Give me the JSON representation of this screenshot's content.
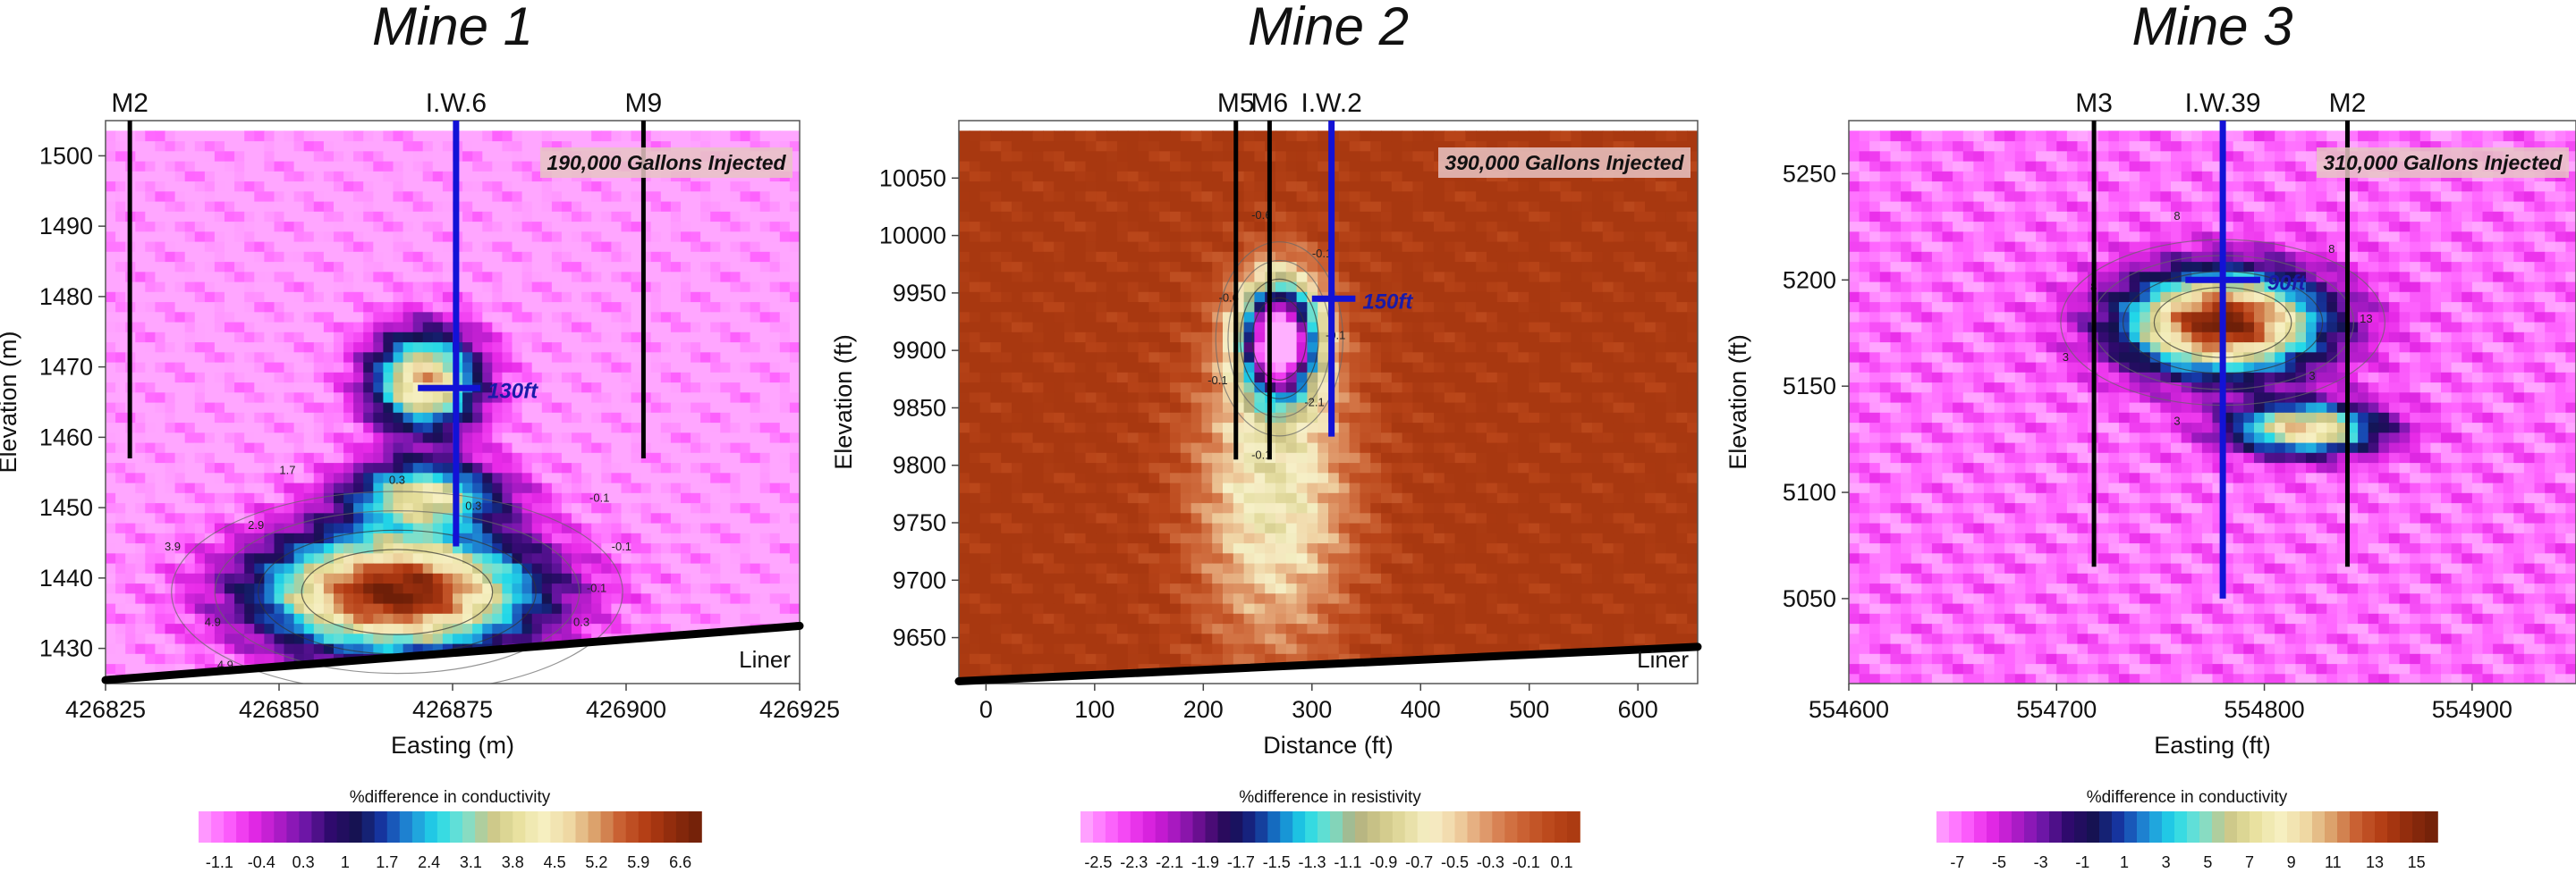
{
  "chart_data": [
    {
      "type": "heatmap",
      "title": "Mine 1",
      "xlabel": "Easting (m)",
      "ylabel": "Elevation (m)",
      "xlim": [
        426825,
        426925
      ],
      "ylim": [
        1425,
        1505
      ],
      "xticks": [
        426825,
        426850,
        426875,
        426900,
        426925
      ],
      "yticks": [
        1430,
        1440,
        1450,
        1460,
        1470,
        1480,
        1490,
        1500
      ],
      "annotation": "190,000 Gallons Injected",
      "liner_label": "Liner",
      "liner": [
        [
          426825,
          1425.5
        ],
        [
          426925,
          1433.2
        ]
      ],
      "surface_y": 1503,
      "wells": [
        {
          "name": "M2",
          "x": 426828.5,
          "y_top": 1505,
          "y_bottom": 1457,
          "color": "#000000"
        },
        {
          "name": "I.W.6",
          "x": 426875.5,
          "y_top": 1505,
          "y_bottom": 1444.5,
          "color": "#1212d6"
        },
        {
          "name": "M9",
          "x": 426902.5,
          "y_top": 1505,
          "y_bottom": 1457,
          "color": "#000000"
        }
      ],
      "radius_marker": {
        "label": "130ft",
        "x0": 426870,
        "x1": 426879,
        "y": 1467
      },
      "contour_labels": [
        "-0.1",
        "-0.1",
        "-0.1",
        "0.3",
        "0.3",
        "1.7",
        "2.9",
        "3.9",
        "3.9",
        "4.9",
        "4.9",
        "6.9",
        "1.9",
        "3.9",
        "2.9",
        "0.3"
      ],
      "anomalies": [
        {
          "x": 426867,
          "y": 1438,
          "rx": 25,
          "ry": 11,
          "amp": 7.2
        },
        {
          "x": 426871,
          "y": 1468,
          "rx": 10,
          "ry": 9,
          "amp": 5.3
        },
        {
          "x": 426871,
          "y": 1452,
          "rx": 14,
          "ry": 6,
          "amp": 3.8
        }
      ],
      "background": -1.1,
      "colorbar": {
        "label": "%difference in conductivity",
        "ticks": [
          "-1.1",
          "-0.4",
          "0.3",
          "1",
          "1.7",
          "2.4",
          "3.1",
          "3.8",
          "4.5",
          "5.2",
          "5.9",
          "6.6"
        ],
        "range": [
          -1.1,
          7.2
        ]
      }
    },
    {
      "type": "heatmap",
      "title": "Mine 2",
      "xlabel": "Distance (ft)",
      "ylabel": "Elevation (ft)",
      "xlim": [
        -25,
        655
      ],
      "ylim": [
        9610,
        10100
      ],
      "xticks": [
        0,
        100,
        200,
        300,
        400,
        500,
        600
      ],
      "yticks": [
        9650,
        9700,
        9750,
        9800,
        9850,
        9900,
        9950,
        10000,
        10050
      ],
      "annotation": "390,000 Gallons Injected",
      "liner_label": "Liner",
      "liner": [
        [
          -25,
          9612
        ],
        [
          655,
          9642
        ]
      ],
      "surface_y": 10085,
      "wells": [
        {
          "name": "M5",
          "x": 230,
          "y_top": 10100,
          "y_bottom": 9805,
          "color": "#000000"
        },
        {
          "name": "M6",
          "x": 261,
          "y_top": 10100,
          "y_bottom": 9805,
          "color": "#000000"
        },
        {
          "name": "I.W.2",
          "x": 318,
          "y_top": 10100,
          "y_bottom": 9825,
          "color": "#1212d6"
        }
      ],
      "radius_marker": {
        "label": "150ft",
        "x0": 300,
        "x1": 340,
        "y": 9945
      },
      "contour_labels": [
        "-0.1",
        "-0.1",
        "-0.6",
        "-0.6",
        "-0.1",
        "-0.1",
        "-2.1"
      ],
      "anomalies": [
        {
          "x": 270,
          "y": 9910,
          "rx": 45,
          "ry": 65,
          "amp": -2.6
        },
        {
          "x": 265,
          "y": 9780,
          "rx": 95,
          "ry": 190,
          "amp": -0.8
        }
      ],
      "background": 0.1,
      "colorbar": {
        "label": "%difference in resistivity",
        "ticks": [
          "-2.5",
          "-2.3",
          "-2.1",
          "-1.9",
          "-1.7",
          "-1.5",
          "-1.3",
          "-1.1",
          "-0.9",
          "-0.7",
          "-0.5",
          "-0.3",
          "-0.1",
          "0.1"
        ],
        "range": [
          -2.6,
          0.1
        ]
      }
    },
    {
      "type": "heatmap",
      "title": "Mine 3",
      "xlabel": "Easting (ft)",
      "ylabel": "Elevation (ft)",
      "xlim": [
        554600,
        554950
      ],
      "ylim": [
        5010,
        5275
      ],
      "xticks": [
        554600,
        554700,
        554800,
        554900
      ],
      "yticks": [
        5050,
        5100,
        5150,
        5200,
        5250
      ],
      "annotation": "310,000 Gallons Injected",
      "liner_label": "",
      "liner": [],
      "surface_y": 5268,
      "wells": [
        {
          "name": "M3",
          "x": 554718,
          "y_top": 5275,
          "y_bottom": 5065,
          "color": "#000000"
        },
        {
          "name": "I.W.39",
          "x": 554780,
          "y_top": 5275,
          "y_bottom": 5050,
          "color": "#1212d6"
        },
        {
          "name": "M2",
          "x": 554840,
          "y_top": 5275,
          "y_bottom": 5065,
          "color": "#000000"
        }
      ],
      "radius_marker": {
        "label": "90ft",
        "x0": 554762,
        "x1": 554798,
        "y": 5200
      },
      "contour_labels": [
        "13",
        "8",
        "8",
        "8",
        "3",
        "3",
        "3"
      ],
      "anomalies": [
        {
          "x": 554780,
          "y": 5180,
          "rx": 60,
          "ry": 30,
          "amp": 16
        },
        {
          "x": 554820,
          "y": 5130,
          "rx": 45,
          "ry": 15,
          "amp": 10
        }
      ],
      "background": -6,
      "colorbar": {
        "label": "%difference in conductivity",
        "ticks": [
          "-7",
          "-5",
          "-3",
          "-1",
          "1",
          "3",
          "5",
          "7",
          "9",
          "11",
          "13",
          "15"
        ],
        "range": [
          -7,
          16
        ]
      }
    }
  ],
  "colors": {
    "well_black": "#000000",
    "injection_well": "#1212d6",
    "annotation_bg": "#e8c4c4"
  }
}
